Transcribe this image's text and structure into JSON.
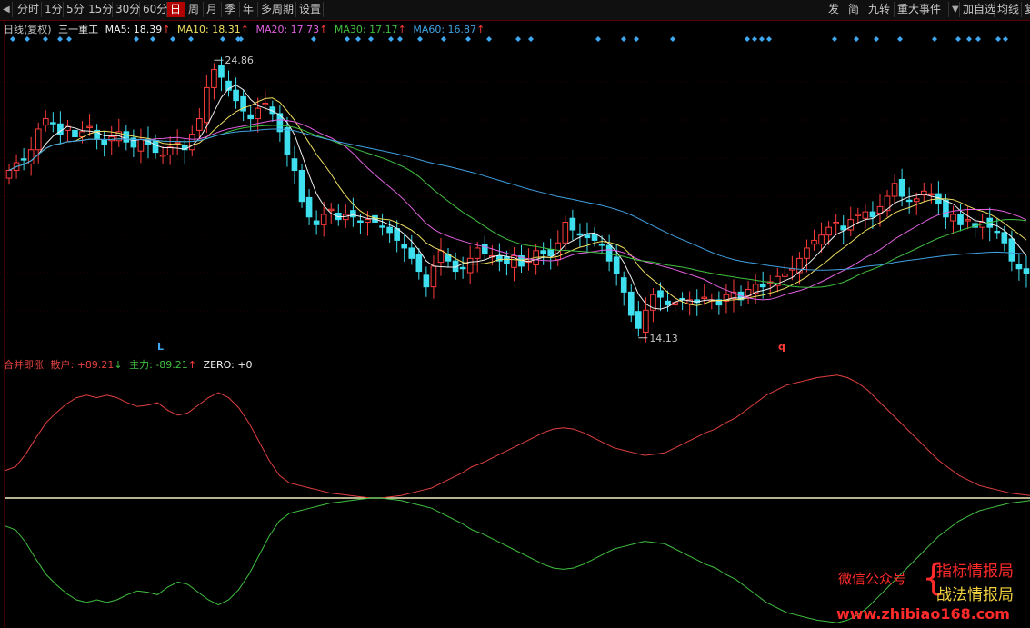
{
  "toolbar": {
    "back_icon": "triangle-left-icon",
    "periods": [
      "分时",
      "1分",
      "5分",
      "15分",
      "30分",
      "60分",
      "日",
      "周",
      "月",
      "季",
      "年",
      "多周期",
      "设置"
    ],
    "active_period": "日",
    "right_items": [
      "发",
      "简",
      "九转",
      "重大事件"
    ],
    "right_extra": [
      "加自选",
      "均线",
      "复"
    ]
  },
  "main_legend": {
    "mode": "日线(复权)",
    "stock": "三一重工",
    "ma5": "MA5: 18.39",
    "ma10": "MA10: 18.31",
    "ma20": "MA20: 17.73",
    "ma30": "MA30: 17.17",
    "ma60": "MA60: 16.87",
    "up_arrow": "↑"
  },
  "annotations": {
    "high_label": "24.86",
    "low_label": "14.13",
    "marker_L": "L",
    "marker_q": "q"
  },
  "indicator_legend": {
    "name": "合并即涨",
    "retail": "散户: +89.21",
    "retail_arrow": "↓",
    "main": "主力: -89.21",
    "main_arrow": "↑",
    "zero": "ZERO: +0"
  },
  "watermark": {
    "left": "微信公众号",
    "brace": "{",
    "right1": "指标情报局",
    "right2": "战法情报局",
    "url": "www.zhibiao168.com"
  },
  "colors": {
    "up": "#ff3c3c",
    "down": "#3ee0f0",
    "ma5": "#f0f0f0",
    "ma10": "#f0e060",
    "ma20": "#e060e0",
    "ma30": "#40c040",
    "ma60": "#40a0e0",
    "retail_line": "#e04040",
    "main_line": "#40c040",
    "zero_line": "#f0f0c0"
  },
  "chart_data": {
    "type": "candlestick",
    "title": "三一重工",
    "price_range": [
      13.7,
      25.5
    ],
    "high": 24.86,
    "low": 14.13,
    "close_series": [
      20.6,
      20.9,
      21.0,
      21.4,
      22.2,
      22.6,
      22.4,
      22.0,
      22.3,
      21.9,
      22.1,
      22.3,
      21.8,
      21.6,
      21.9,
      22.1,
      21.7,
      21.5,
      21.8,
      21.6,
      21.3,
      21.2,
      21.5,
      21.7,
      21.4,
      22.0,
      22.6,
      23.8,
      24.5,
      24.2,
      23.7,
      23.3,
      22.9,
      22.6,
      23.0,
      23.2,
      22.8,
      22.1,
      21.2,
      20.6,
      19.4,
      18.8,
      18.5,
      18.9,
      19.1,
      18.7,
      18.9,
      18.8,
      18.6,
      18.7,
      18.6,
      18.4,
      18.2,
      17.9,
      17.6,
      17.2,
      16.7,
      16.1,
      16.9,
      17.5,
      17.1,
      16.7,
      16.8,
      17.2,
      17.6,
      17.4,
      17.3,
      17.1,
      17.0,
      17.3,
      16.9,
      17.1,
      17.5,
      17.4,
      17.3,
      17.8,
      18.6,
      18.3,
      18.1,
      18.0,
      17.9,
      17.7,
      17.1,
      16.6,
      15.9,
      15.0,
      14.5,
      15.2,
      15.8,
      15.7,
      15.4,
      15.5,
      15.6,
      15.6,
      15.5,
      15.7,
      15.6,
      15.4,
      15.8,
      15.9,
      15.6,
      16.0,
      16.2,
      16.1,
      16.3,
      16.5,
      16.6,
      16.8,
      17.2,
      17.6,
      17.9,
      18.1,
      18.4,
      18.6,
      18.3,
      18.7,
      18.9,
      19.0,
      18.8,
      19.2,
      19.6,
      20.1,
      19.6,
      19.4,
      19.5,
      19.8,
      19.7,
      19.3,
      18.8,
      18.9,
      18.5,
      18.7,
      18.4,
      18.6,
      18.4,
      18.2,
      17.8,
      17.1,
      16.8,
      16.6
    ]
  },
  "indicator_data": {
    "type": "line",
    "range": [
      -100,
      100
    ],
    "zero": 0,
    "retail": [
      22,
      25,
      35,
      48,
      60,
      68,
      75,
      80,
      82,
      80,
      82,
      80,
      76,
      73,
      74,
      76,
      70,
      66,
      68,
      74,
      80,
      84,
      80,
      72,
      60,
      45,
      30,
      18,
      12,
      10,
      8,
      6,
      4,
      3,
      2,
      1,
      0,
      0,
      1,
      2,
      4,
      6,
      8,
      12,
      16,
      20,
      25,
      28,
      32,
      36,
      40,
      44,
      48,
      52,
      55,
      56,
      55,
      52,
      48,
      44,
      40,
      38,
      36,
      34,
      35,
      36,
      40,
      44,
      48,
      52,
      55,
      60,
      64,
      70,
      76,
      82,
      86,
      90,
      92,
      94,
      96,
      97,
      98,
      96,
      92,
      86,
      78,
      70,
      62,
      54,
      46,
      38,
      30,
      24,
      18,
      14,
      10,
      8,
      6,
      4,
      3,
      2
    ],
    "main": [
      -22,
      -25,
      -35,
      -48,
      -60,
      -68,
      -75,
      -80,
      -82,
      -80,
      -82,
      -80,
      -76,
      -73,
      -74,
      -76,
      -70,
      -66,
      -68,
      -74,
      -80,
      -84,
      -80,
      -72,
      -60,
      -45,
      -30,
      -18,
      -12,
      -10,
      -8,
      -6,
      -4,
      -3,
      -2,
      -1,
      0,
      0,
      -1,
      -2,
      -4,
      -6,
      -8,
      -12,
      -16,
      -20,
      -25,
      -28,
      -32,
      -36,
      -40,
      -44,
      -48,
      -52,
      -55,
      -56,
      -55,
      -52,
      -48,
      -44,
      -40,
      -38,
      -36,
      -34,
      -35,
      -36,
      -40,
      -44,
      -48,
      -52,
      -55,
      -60,
      -64,
      -70,
      -76,
      -82,
      -86,
      -90,
      -92,
      -94,
      -96,
      -97,
      -98,
      -96,
      -92,
      -86,
      -78,
      -70,
      -62,
      -54,
      -46,
      -38,
      -30,
      -24,
      -18,
      -14,
      -10,
      -8,
      -6,
      -4,
      -3,
      -2
    ]
  }
}
